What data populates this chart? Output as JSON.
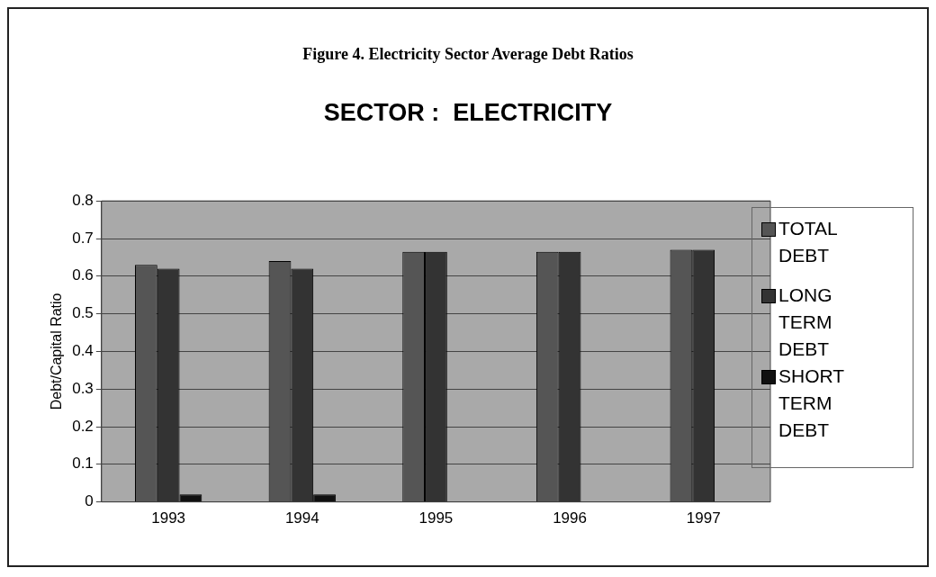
{
  "chart_data": {
    "type": "bar",
    "title": "Figure 4. Electricity Sector Average Debt Ratios",
    "subtitle": "SECTOR :  ELECTRICITY",
    "ylabel": "Debt/Capital Ratio",
    "categories": [
      "1993",
      "1994",
      "1995",
      "1996",
      "1997"
    ],
    "series": [
      {
        "name": "TOTAL DEBT",
        "color": "#555555",
        "values": [
          0.63,
          0.64,
          0.665,
          0.665,
          0.67
        ]
      },
      {
        "name": "LONG TERM DEBT",
        "color": "#333333",
        "values": [
          0.62,
          0.62,
          0.665,
          0.665,
          0.67
        ]
      },
      {
        "name": "SHORT TERM DEBT",
        "color": "#111111",
        "values": [
          0.02,
          0.02,
          0,
          0,
          0
        ]
      }
    ],
    "ylim": [
      0,
      0.8
    ],
    "yticks": [
      0,
      0.1,
      0.2,
      0.3,
      0.4,
      0.5,
      0.6,
      0.7,
      0.8
    ],
    "grid": "y",
    "legend": "right"
  }
}
